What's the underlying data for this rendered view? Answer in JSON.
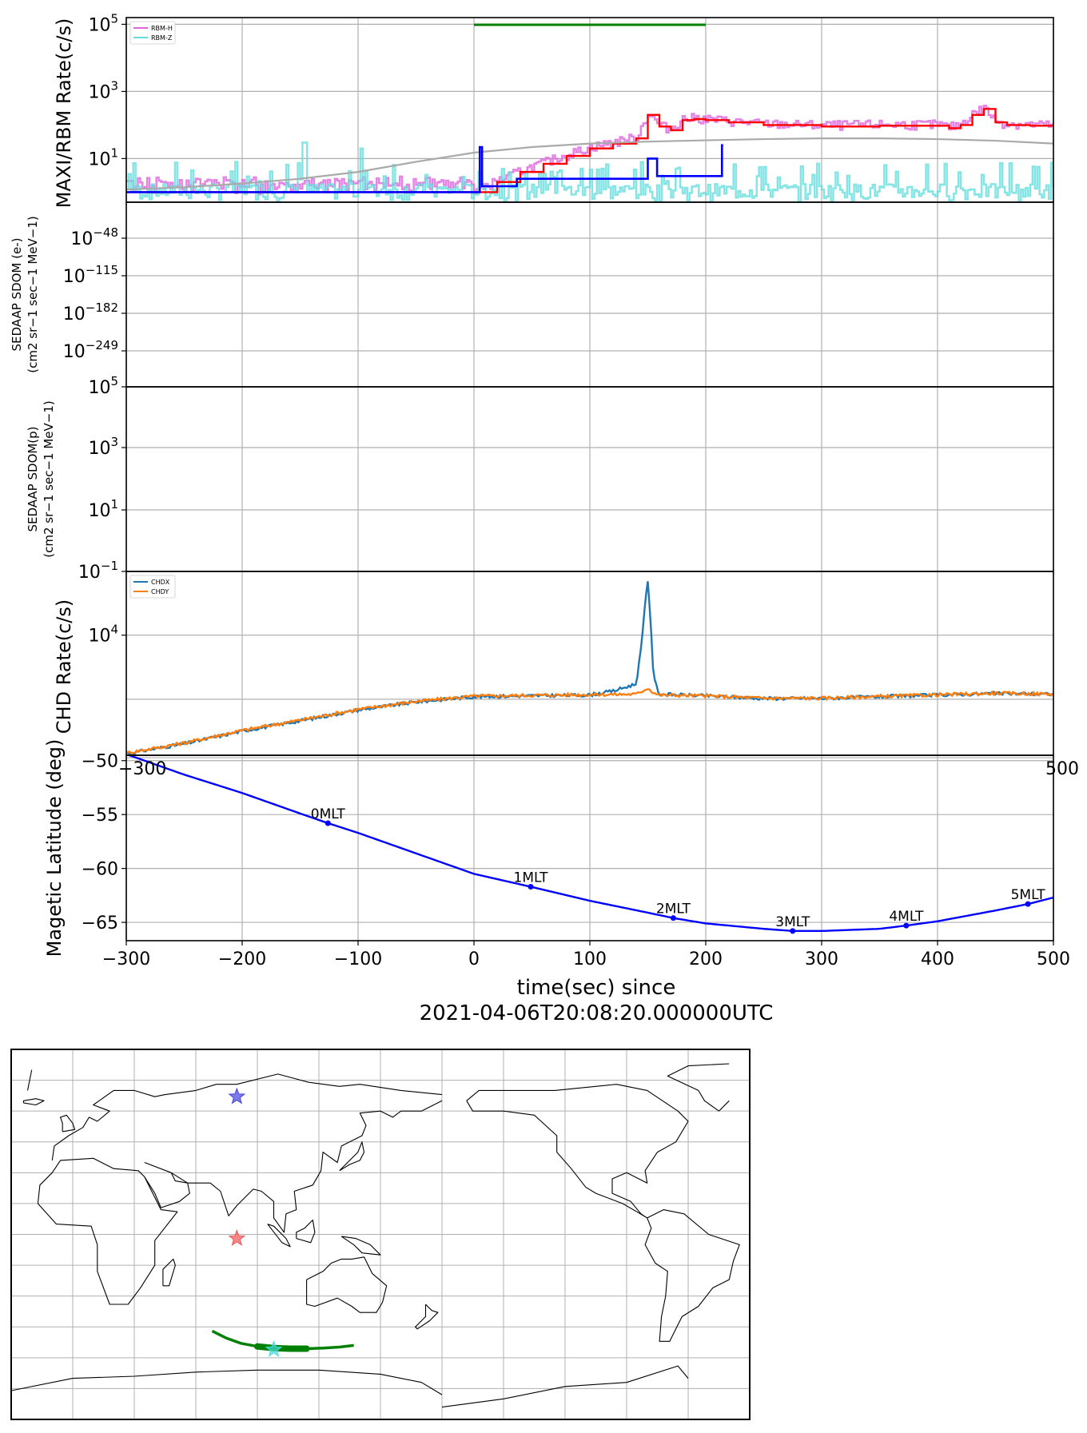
{
  "chart_data": [
    {
      "type": "line",
      "panel": "rbm",
      "ylabel": "MAXI/RBM Rate(c/s)",
      "yscale": "log",
      "ylim_exp": [
        -0.3,
        5.2
      ],
      "yticks": [
        {
          "base": "10",
          "exp": "5",
          "e": 5
        },
        {
          "base": "10",
          "exp": "3",
          "e": 3
        },
        {
          "base": "10",
          "exp": "1",
          "e": 1
        }
      ],
      "legend": {
        "placement": "top-left",
        "entries": [
          {
            "name": "RBM-H",
            "color": "#dd66dd"
          },
          {
            "name": "RBM-Z",
            "color": "#66dddd"
          }
        ]
      },
      "green_bar": {
        "x_start": 0,
        "x_end": 200,
        "color": "#008000"
      },
      "series": [
        {
          "name": "RBM-H smoothed",
          "color": "#ff0000",
          "x": [
            -300,
            -200,
            -100,
            0,
            20,
            40,
            60,
            80,
            100,
            120,
            140,
            150,
            160,
            170,
            180,
            190,
            200,
            220,
            250,
            300,
            350,
            400,
            410,
            420,
            430,
            440,
            450,
            460,
            480,
            500
          ],
          "y": [
            1,
            1,
            1,
            1,
            2,
            4,
            7,
            12,
            20,
            28,
            40,
            200,
            90,
            70,
            140,
            150,
            140,
            120,
            100,
            90,
            95,
            95,
            80,
            100,
            200,
            300,
            120,
            100,
            95,
            90
          ]
        },
        {
          "name": "background",
          "color": "#aaaaaa",
          "x": [
            -300,
            -250,
            -200,
            -150,
            -100,
            -50,
            0,
            50,
            100,
            150,
            200,
            250,
            300,
            350,
            400,
            450,
            500
          ],
          "y": [
            1.2,
            1.4,
            1.8,
            2.5,
            4,
            8,
            15,
            22,
            28,
            32,
            35,
            38,
            40,
            40,
            38,
            34,
            28
          ]
        },
        {
          "name": "blue step",
          "color": "#0000ff",
          "x": [
            -300,
            5,
            5,
            7,
            7,
            37,
            37,
            150,
            150,
            158,
            158,
            214,
            214,
            215
          ],
          "y": [
            1,
            1,
            22,
            22,
            1.5,
            1.5,
            2.5,
            2.5,
            10,
            10,
            3,
            3,
            25,
            25
          ]
        }
      ]
    },
    {
      "type": "line",
      "panel": "sdom-e",
      "ylabel_lines": [
        "SEDAAP SDOM (e-)",
        "(cm2 sr−1 sec−1 MeV−1)"
      ],
      "yticks": [
        {
          "base": "10",
          "exp": "−48"
        },
        {
          "base": "10",
          "exp": "−115"
        },
        {
          "base": "10",
          "exp": "−182"
        },
        {
          "base": "10",
          "exp": "−249"
        }
      ],
      "series": []
    },
    {
      "type": "line",
      "panel": "sdom-p",
      "ylabel_lines": [
        "SEDAAP SDOM(p)",
        "(cm2 sr−1 sec−1 MeV−1)"
      ],
      "yticks": [
        {
          "base": "10",
          "exp": "5"
        },
        {
          "base": "10",
          "exp": "3"
        },
        {
          "base": "10",
          "exp": "1"
        },
        {
          "base": "10",
          "exp": "−1"
        }
      ],
      "series": []
    },
    {
      "type": "line",
      "panel": "chd",
      "ylabel": "CHD Rate(c/s)",
      "yscale": "log",
      "ylim_exp": [
        3.02,
        4.52
      ],
      "yticks": [
        {
          "base": "10",
          "exp": "4",
          "e": 4
        }
      ],
      "legend": {
        "placement": "top-left",
        "entries": [
          {
            "name": "CHDX",
            "color": "#1f77b4"
          },
          {
            "name": "CHDY",
            "color": "#ff7f0e"
          }
        ]
      },
      "series": [
        {
          "name": "CHDX",
          "color": "#1f77b4",
          "x": [
            -300,
            -250,
            -200,
            -150,
            -100,
            -50,
            0,
            50,
            100,
            120,
            140,
            145,
            148,
            150,
            152,
            155,
            160,
            200,
            250,
            300,
            350,
            400,
            450,
            500
          ],
          "y": [
            1080,
            1300,
            1650,
            2000,
            2450,
            2850,
            3150,
            3200,
            3250,
            3500,
            4000,
            9000,
            20000,
            28000,
            15000,
            4500,
            3300,
            3200,
            3050,
            3050,
            3150,
            3250,
            3350,
            3300
          ]
        },
        {
          "name": "CHDY",
          "color": "#ff7f0e",
          "x": [
            -300,
            -250,
            -200,
            -150,
            -100,
            -50,
            0,
            50,
            100,
            140,
            150,
            155,
            160,
            200,
            250,
            300,
            350,
            400,
            450,
            500
          ],
          "y": [
            1090,
            1320,
            1670,
            2030,
            2480,
            2880,
            3180,
            3230,
            3270,
            3300,
            3700,
            3400,
            3250,
            3200,
            3060,
            3060,
            3160,
            3260,
            3360,
            3310
          ]
        }
      ]
    },
    {
      "type": "line",
      "panel": "maglat",
      "ylabel": "Magetic Latitude  (deg)",
      "xlabel_lines": [
        "time(sec) since",
        "2021-04-06T20:08:20.000000UTC"
      ],
      "xlim": [
        -300,
        500
      ],
      "ylim": [
        -66.7,
        -49.5
      ],
      "xticks": [
        "−300",
        "−200",
        "−100",
        "0",
        "100",
        "200",
        "300",
        "400",
        "500"
      ],
      "yticks": [
        "−50",
        "−55",
        "−60",
        "−65"
      ],
      "overlap_ticks": {
        "left": "−300",
        "right": "500"
      },
      "series": [
        {
          "name": "maglat",
          "color": "#0000ff",
          "x": [
            -300,
            -250,
            -200,
            -150,
            -126,
            -100,
            -50,
            0,
            49,
            100,
            150,
            172,
            200,
            250,
            275,
            300,
            350,
            373,
            400,
            450,
            478,
            500
          ],
          "y": [
            -49.4,
            -51.3,
            -53.0,
            -54.9,
            -55.8,
            -56.7,
            -58.6,
            -60.5,
            -61.7,
            -63.0,
            -64.1,
            -64.6,
            -65.1,
            -65.6,
            -65.8,
            -65.8,
            -65.6,
            -65.3,
            -64.9,
            -63.9,
            -63.3,
            -62.7
          ]
        }
      ],
      "markers": [
        {
          "label": "0MLT",
          "x": -126,
          "y": -55.8
        },
        {
          "label": "1MLT",
          "x": 49,
          "y": -61.7
        },
        {
          "label": "2MLT",
          "x": 172,
          "y": -64.6
        },
        {
          "label": "3MLT",
          "x": 275,
          "y": -65.8
        },
        {
          "label": "4MLT",
          "x": 373,
          "y": -65.3
        },
        {
          "label": "5MLT",
          "x": 478,
          "y": -63.3
        }
      ]
    },
    {
      "type": "scatter",
      "panel": "map",
      "projection": "plate-carree",
      "central_longitude": 150,
      "grid": true,
      "star_markers": [
        {
          "name": "blue star",
          "color": "#4444dd",
          "lon": 80,
          "lat": 67
        },
        {
          "name": "red star",
          "color": "#ee5555",
          "lon": 80,
          "lat": -2
        },
        {
          "name": "cyan star",
          "color": "#44dddd",
          "lon": 98,
          "lat": -56
        }
      ],
      "track": {
        "color": "#008000",
        "lon": [
          68,
          75,
          82,
          90,
          98,
          106,
          114,
          122,
          130,
          137
        ],
        "lat": [
          -47,
          -50.5,
          -53,
          -54.5,
          -55.3,
          -55.6,
          -55.6,
          -55.3,
          -54.8,
          -54
        ]
      }
    }
  ]
}
